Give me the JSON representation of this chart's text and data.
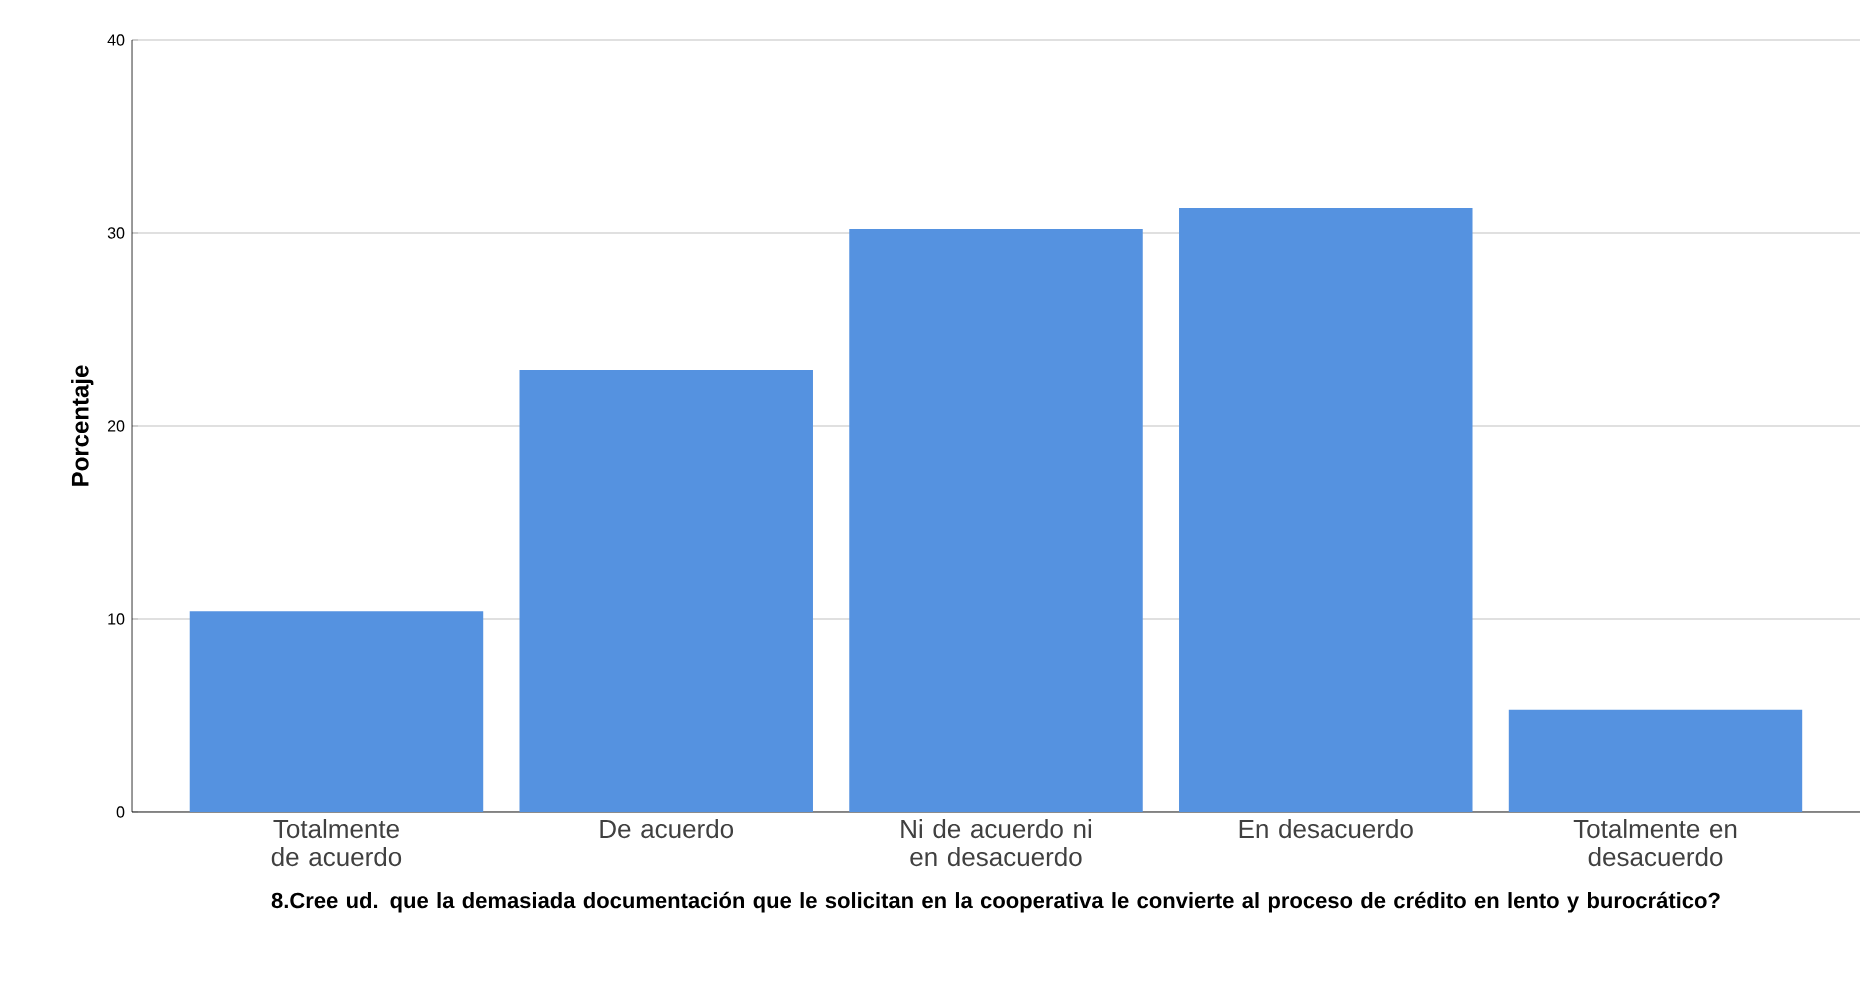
{
  "chart_data": {
    "type": "bar",
    "xlabel": "8.Cree ud. que la demasiada documentación que le solicitan en la cooperativa le convierte al proceso de crédito en lento y burocrático?",
    "ylabel": "Porcentaje",
    "categories": [
      "Totalmente de acuerdo",
      "De acuerdo",
      "Ni de acuerdo ni en desacuerdo",
      "En desacuerdo",
      "Totalmente en desacuerdo"
    ],
    "values": [
      10.4,
      22.9,
      30.2,
      31.3,
      5.3
    ],
    "color": "#5592e0",
    "ylim": [
      0,
      40
    ],
    "yticks": [
      0,
      10,
      20,
      30,
      40
    ],
    "grid": "y"
  }
}
